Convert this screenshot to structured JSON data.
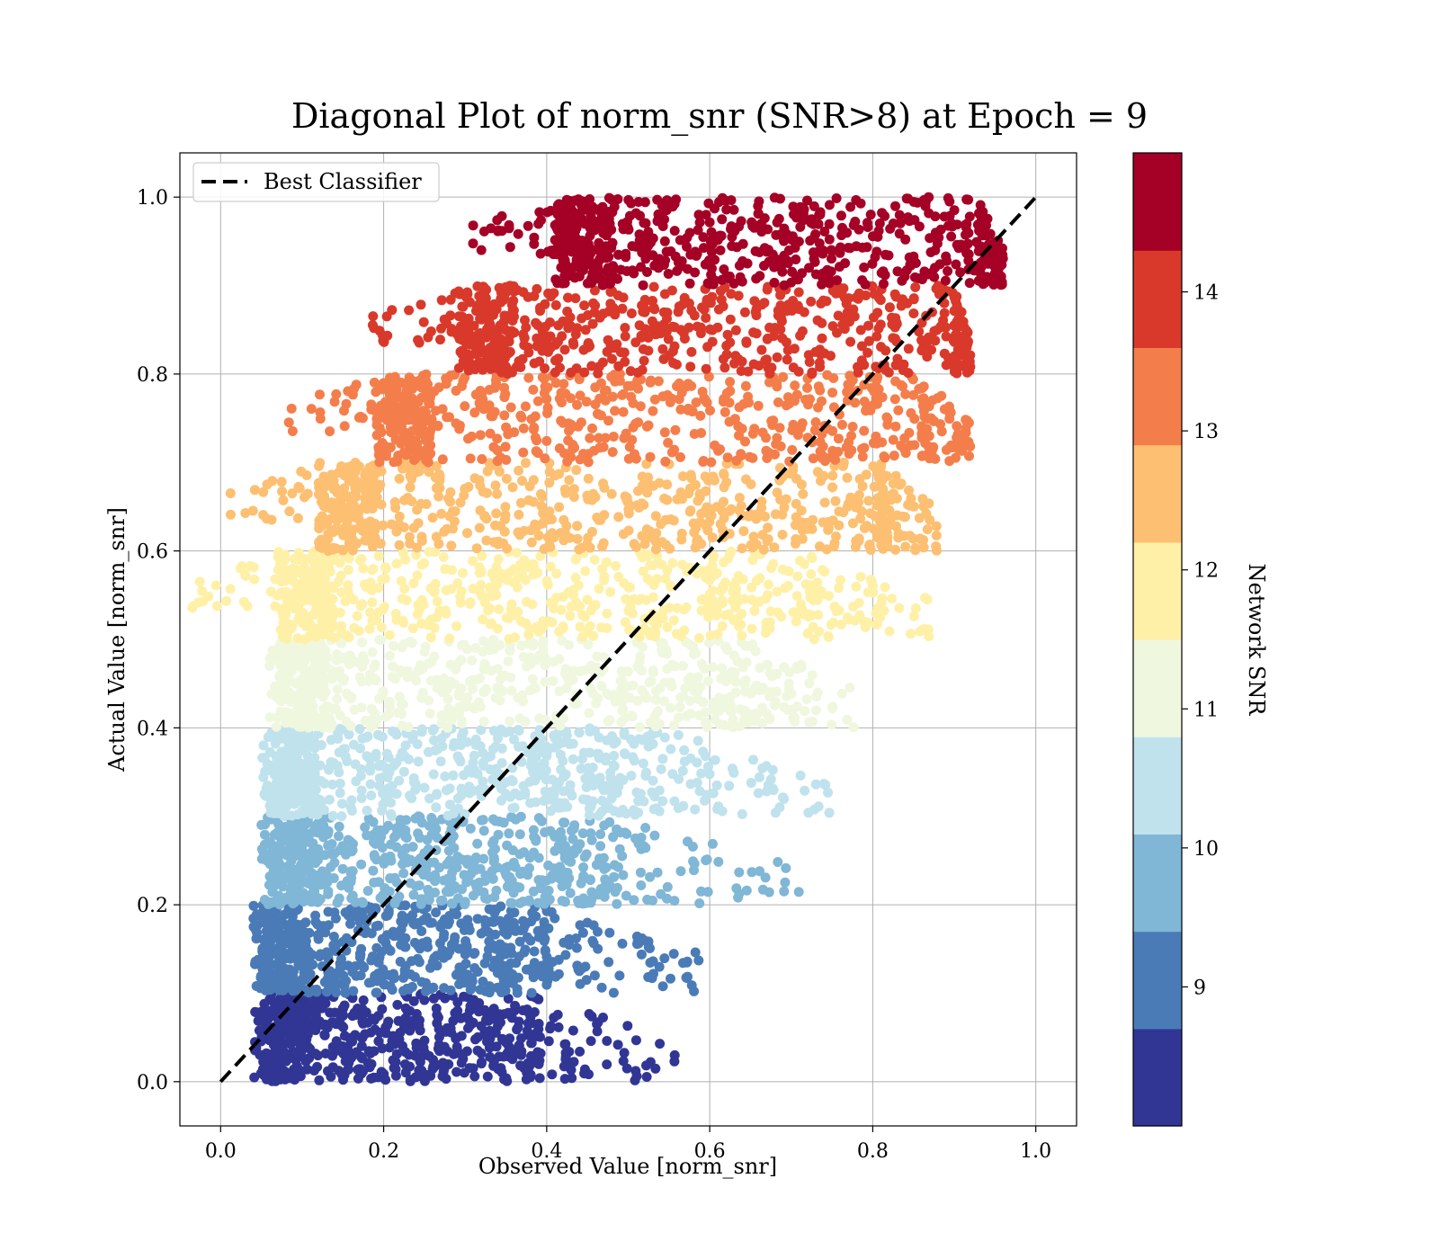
{
  "chart_data": {
    "type": "scatter",
    "title": "Diagonal Plot of norm_snr (SNR>8) at Epoch = 9",
    "xlabel": "Observed Value [norm_snr]",
    "ylabel": "Actual Value [norm_snr]",
    "xlim": [
      -0.05,
      1.05
    ],
    "ylim": [
      -0.05,
      1.05
    ],
    "x_ticks": [
      "0.0",
      "0.2",
      "0.4",
      "0.6",
      "0.8",
      "1.0"
    ],
    "y_ticks": [
      "0.0",
      "0.2",
      "0.4",
      "0.6",
      "0.8",
      "1.0"
    ],
    "x_tick_values": [
      0.0,
      0.2,
      0.4,
      0.6,
      0.8,
      1.0
    ],
    "y_tick_values": [
      0.0,
      0.2,
      0.4,
      0.6,
      0.8,
      1.0
    ],
    "grid": true,
    "legend": {
      "placement": "top-left",
      "entries": [
        "Best Classifier"
      ]
    },
    "reference_line": {
      "name": "Best Classifier",
      "style": "dashed",
      "color": "#000000",
      "x": [
        0.0,
        1.0
      ],
      "y": [
        0.0,
        1.0
      ]
    },
    "colorbar": {
      "label": "Network SNR",
      "range": [
        8.0,
        15.0
      ],
      "ticks": [
        "9",
        "10",
        "11",
        "12",
        "13",
        "14"
      ],
      "tick_values": [
        9,
        10,
        11,
        12,
        13,
        14
      ],
      "colors": [
        "#313695",
        "#4575b4",
        "#74add1",
        "#abd9e9",
        "#e0f3f8",
        "#ffffbf",
        "#fee090",
        "#fdae61",
        "#f46d43",
        "#d73027",
        "#a50026"
      ]
    },
    "point_bands": [
      {
        "y_range": [
          0.0,
          0.1
        ],
        "color": "#313695",
        "dense_x": [
          0.05,
          0.38
        ],
        "scatter_x_max": 0.56
      },
      {
        "y_range": [
          0.1,
          0.2
        ],
        "color": "#4a7bb7",
        "dense_x": [
          0.05,
          0.4
        ],
        "scatter_x_max": 0.59
      },
      {
        "y_range": [
          0.2,
          0.3
        ],
        "color": "#80b6d6",
        "dense_x": [
          0.06,
          0.47
        ],
        "scatter_x_max": 0.71
      },
      {
        "y_range": [
          0.3,
          0.4
        ],
        "color": "#bfe2ed",
        "dense_x": [
          0.06,
          0.53
        ],
        "scatter_x_max": 0.75
      },
      {
        "y_range": [
          0.4,
          0.5
        ],
        "color": "#eff7df",
        "dense_x": [
          0.07,
          0.64
        ],
        "scatter_x_max": 0.78
      },
      {
        "y_range": [
          0.5,
          0.6
        ],
        "color": "#fff0a8",
        "dense_x": [
          0.08,
          0.72
        ],
        "scatter_x_max": 0.87
      },
      {
        "y_range": [
          0.6,
          0.7
        ],
        "color": "#fdbf71",
        "dense_x": [
          0.13,
          0.81
        ],
        "scatter_x_max": 0.88
      },
      {
        "y_range": [
          0.7,
          0.8
        ],
        "color": "#f47e4b",
        "dense_x": [
          0.2,
          0.86
        ],
        "scatter_x_max": 0.92
      },
      {
        "y_range": [
          0.8,
          0.9
        ],
        "color": "#d9392b",
        "dense_x": [
          0.3,
          0.9
        ],
        "scatter_x_max": 0.92
      },
      {
        "y_range": [
          0.9,
          1.0
        ],
        "color": "#a50026",
        "dense_x": [
          0.42,
          0.93
        ],
        "scatter_x_max": 0.96
      }
    ]
  }
}
